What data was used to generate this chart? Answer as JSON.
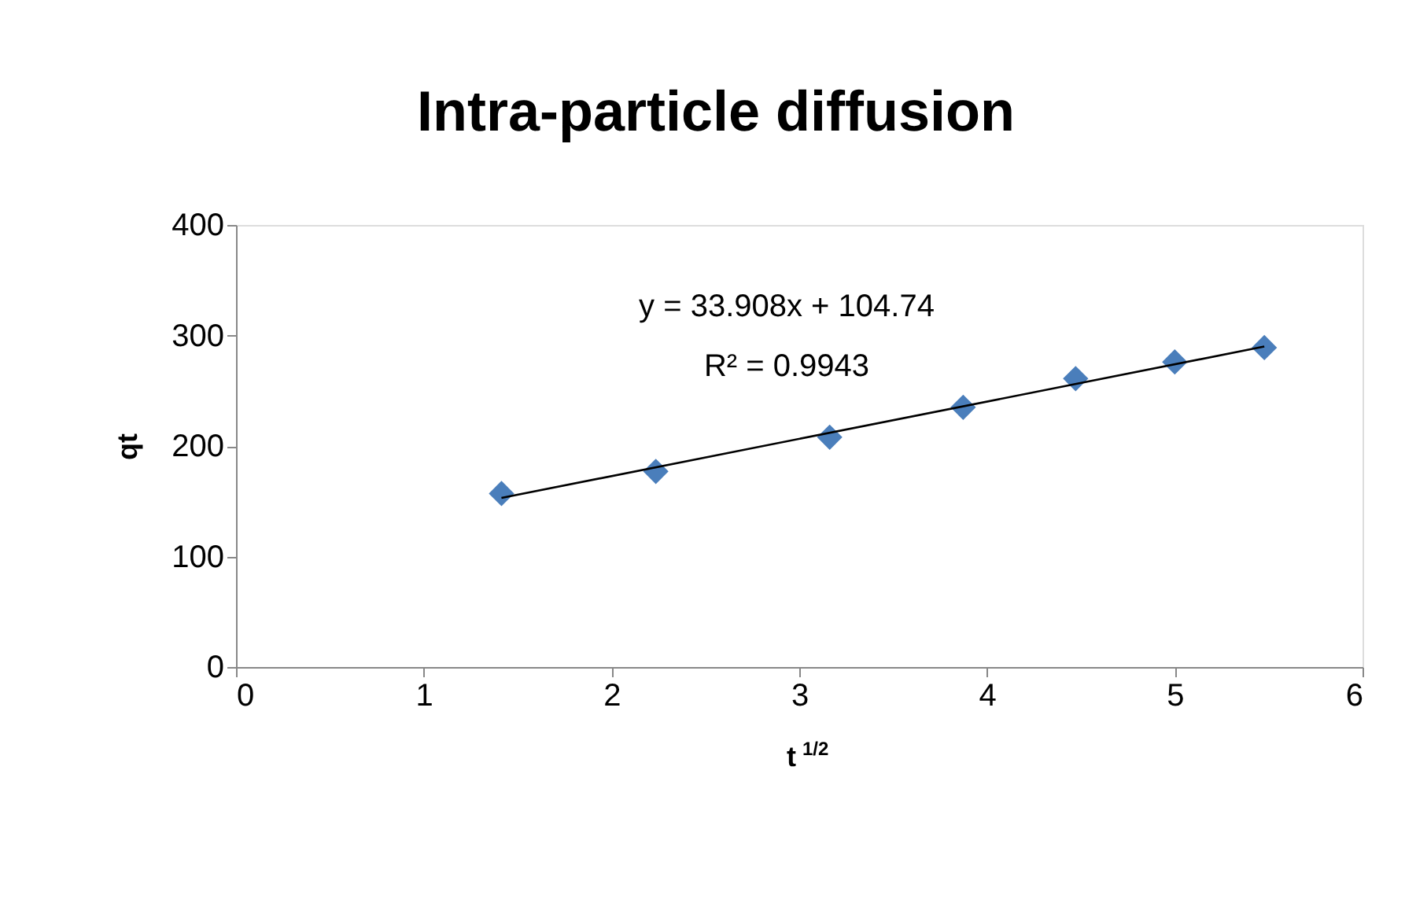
{
  "chart_data": {
    "type": "scatter",
    "title": "Intra-particle diffusion",
    "xlabel": "t $^{1/2}$",
    "ylabel": "qt",
    "xlim": [
      0,
      6
    ],
    "xticks": [
      0,
      1,
      2,
      3,
      4,
      5,
      6
    ],
    "ylim": [
      0,
      400
    ],
    "yticks": [
      0,
      100,
      200,
      300,
      400
    ],
    "grid": false,
    "legend": false,
    "marker": "diamond",
    "annotations": [
      "y = 33.908x + 104.74",
      "R² = 0.9943"
    ],
    "series": [
      {
        "color": "#4a7ebb",
        "x": [
          1.414,
          2.236,
          3.162,
          3.873,
          4.472,
          5,
          5.477
        ],
        "values": [
          157,
          177,
          208,
          235,
          261,
          276,
          289
        ]
      },
      {
        "type": "line",
        "color": "#000000",
        "line_style": "solid",
        "marker": "none",
        "x": [
          1.414,
          5.477
        ],
        "values": [
          153,
          290
        ]
      }
    ]
  }
}
